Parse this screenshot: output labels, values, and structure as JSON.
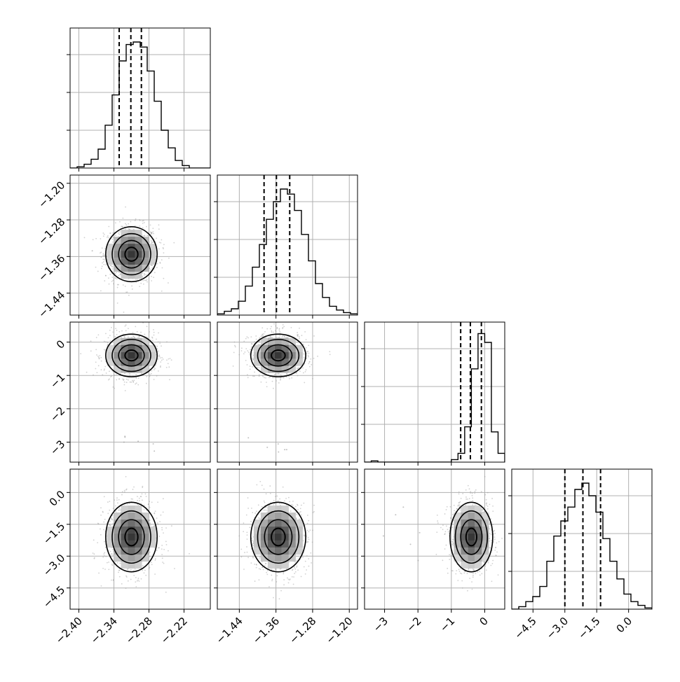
{
  "chart_data": {
    "type": "corner",
    "title": "",
    "parameters": [
      {
        "range": [
          -2.415,
          -2.175
        ],
        "ticks": [
          -2.4,
          -2.34,
          -2.28,
          -2.22
        ],
        "tick_labels": [
          "−2.40",
          "−2.34",
          "−2.28",
          "−2.22"
        ],
        "quantiles": [
          -2.331,
          -2.311,
          -2.293
        ],
        "hist": [
          0.0,
          0.01,
          0.03,
          0.07,
          0.15,
          0.34,
          0.58,
          0.85,
          0.98,
          1.0,
          0.96,
          0.77,
          0.53,
          0.3,
          0.16,
          0.06,
          0.02,
          0.0,
          0.0,
          0.0
        ],
        "mode": -2.31,
        "spread": 0.022
      },
      {
        "range": [
          -1.488,
          -1.182
        ],
        "ticks": [
          -1.44,
          -1.36,
          -1.28,
          -1.2
        ],
        "tick_labels": [
          "−1.44",
          "−1.36",
          "−1.28",
          "−1.20"
        ],
        "quantiles": [
          -1.386,
          -1.359,
          -1.33
        ],
        "hist": [
          0.01,
          0.03,
          0.05,
          0.11,
          0.23,
          0.38,
          0.56,
          0.76,
          0.9,
          1.0,
          0.96,
          0.83,
          0.64,
          0.43,
          0.25,
          0.14,
          0.07,
          0.04,
          0.02,
          0.01
        ],
        "mode": -1.355,
        "spread": 0.03
      },
      {
        "range": [
          -3.6,
          0.6
        ],
        "ticks": [
          -3,
          -2,
          -1,
          0
        ],
        "tick_labels": [
          "−3",
          "−2",
          "−1",
          "0"
        ],
        "quantiles": [
          -0.72,
          -0.43,
          -0.1
        ],
        "hist": [
          0.0,
          0.01,
          0.0,
          0.0,
          0.0,
          0.0,
          0.0,
          0.0,
          0.0,
          0.0,
          0.0,
          0.0,
          0.0,
          0.02,
          0.07,
          0.28,
          0.74,
          1.02,
          0.95,
          0.24,
          0.07
        ],
        "mode": -0.4,
        "spread": 0.32
      },
      {
        "range": [
          -5.5,
          1.1
        ],
        "ticks": [
          -4.5,
          -3.0,
          -1.5,
          0.0
        ],
        "tick_labels": [
          "−4.5",
          "−3.0",
          "−1.5",
          "0.0"
        ],
        "quantiles": [
          -3.0,
          -2.15,
          -1.32
        ],
        "hist": [
          0.0,
          0.02,
          0.06,
          0.1,
          0.18,
          0.38,
          0.58,
          0.7,
          0.81,
          0.95,
          1.0,
          0.9,
          0.77,
          0.56,
          0.38,
          0.24,
          0.12,
          0.06,
          0.03,
          0.01
        ],
        "mode": -2.1,
        "spread": 0.82
      }
    ],
    "grid": true,
    "contour_levels": 3,
    "line_color": "#000000",
    "point_color": "#9a9a9a",
    "grid_color": "#b0b0b0"
  }
}
